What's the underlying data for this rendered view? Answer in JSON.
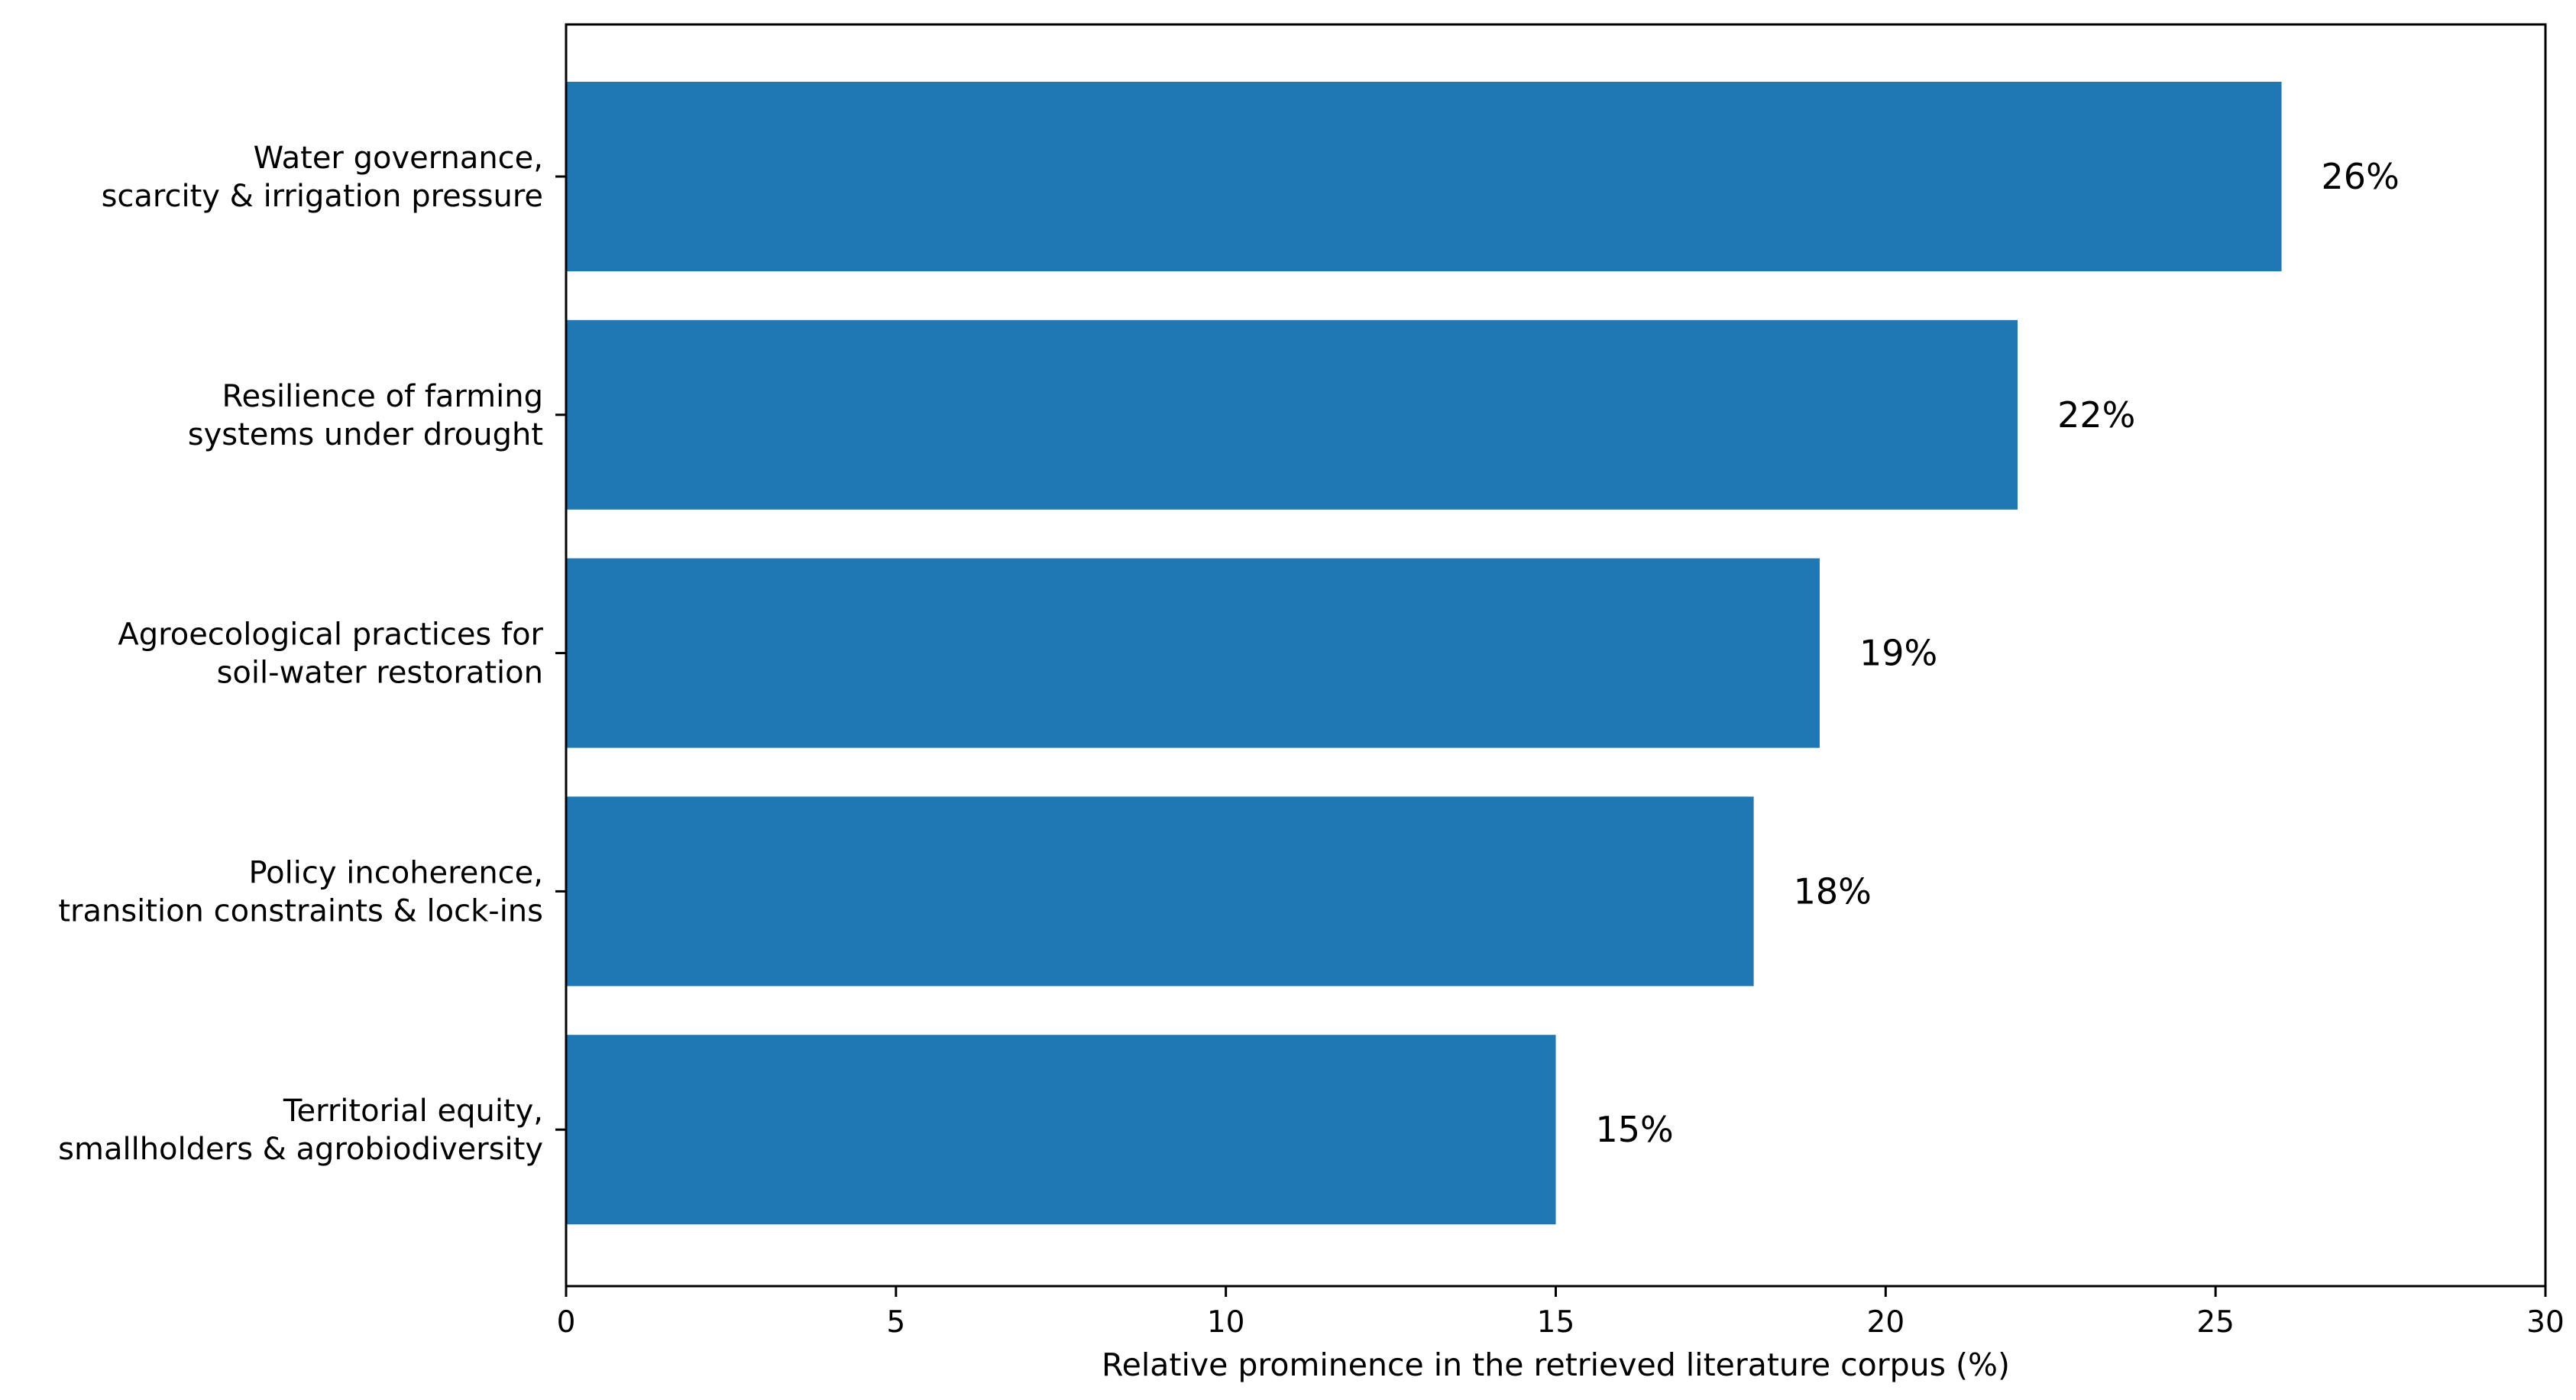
{
  "chart_data": {
    "type": "bar",
    "orientation": "horizontal",
    "title": "",
    "xlabel": "Relative prominence in the retrieved literature corpus (%)",
    "ylabel": "",
    "xlim": [
      0,
      30
    ],
    "xticks": [
      0,
      5,
      10,
      15,
      20,
      25,
      30
    ],
    "grid": false,
    "legend": "none",
    "bar_color": "#1f77b4",
    "categories": [
      [
        "Water governance,",
        "scarcity & irrigation pressure"
      ],
      [
        "Resilience of farming",
        "systems under drought"
      ],
      [
        "Agroecological practices for",
        "soil-water restoration"
      ],
      [
        "Policy incoherence,",
        "transition constraints & lock-ins"
      ],
      [
        "Territorial equity,",
        "smallholders & agrobiodiversity"
      ]
    ],
    "values": [
      26,
      22,
      19,
      18,
      15
    ],
    "data_labels": [
      "26%",
      "22%",
      "19%",
      "18%",
      "15%"
    ]
  }
}
